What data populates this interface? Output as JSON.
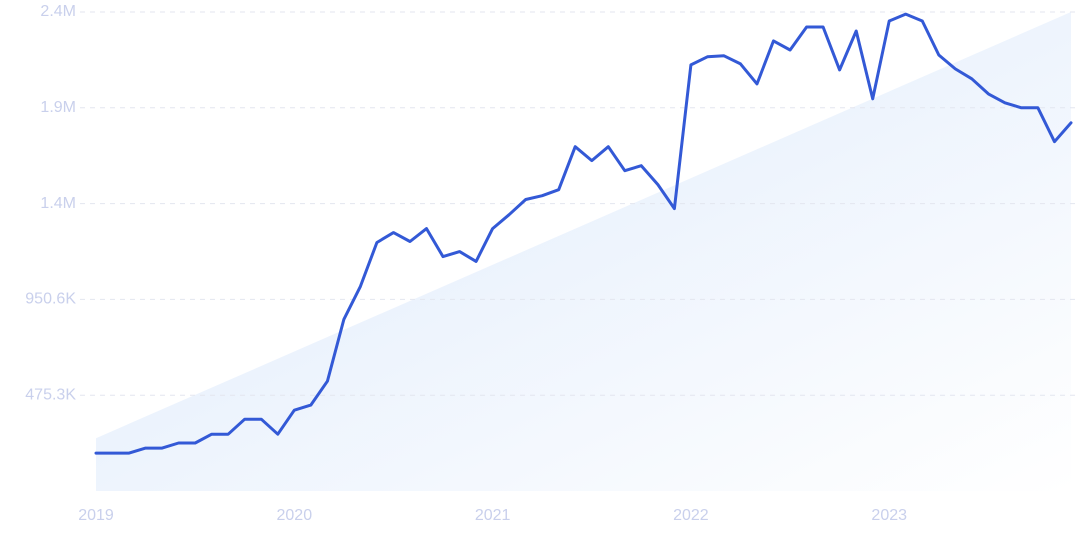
{
  "chart_data": {
    "type": "line",
    "categories": [
      "2019",
      null,
      null,
      null,
      null,
      null,
      null,
      null,
      null,
      null,
      null,
      null,
      "2020",
      null,
      null,
      null,
      null,
      null,
      null,
      null,
      null,
      null,
      null,
      null,
      "2021",
      null,
      null,
      null,
      null,
      null,
      null,
      null,
      null,
      null,
      null,
      null,
      "2022",
      null,
      null,
      null,
      null,
      null,
      null,
      null,
      null,
      null,
      null,
      null,
      "2023",
      null,
      null,
      null,
      null,
      null,
      null,
      null,
      null,
      null,
      null,
      null
    ],
    "series": [
      {
        "color": "#3359d6",
        "values": [
          188000,
          188000,
          188000,
          213000,
          213000,
          238000,
          238000,
          282000,
          282000,
          356000,
          356000,
          282000,
          401000,
          426000,
          545000,
          852000,
          1015000,
          1233000,
          1282000,
          1238000,
          1302000,
          1163000,
          1188000,
          1139000,
          1302000,
          1371000,
          1446000,
          1465000,
          1495000,
          1708000,
          1639000,
          1708000,
          1589000,
          1614000,
          1520000,
          1401000,
          2114000,
          2154000,
          2159000,
          2119000,
          2020000,
          2233000,
          2188000,
          2302000,
          2302000,
          2089000,
          2282000,
          1946000,
          2332000,
          2366000,
          2332000,
          2163000,
          2094000,
          2045000,
          1970000,
          1926000,
          1901000,
          1901000,
          1733000,
          1827000
        ]
      }
    ],
    "trend": {
      "color": "#e3eefc",
      "values": [
        262000,
        2376500
      ]
    },
    "ylim": [
      0,
      2376500
    ],
    "yticks": [
      {
        "value": 475300,
        "label": "475.3K"
      },
      {
        "value": 950600,
        "label": "950.6K"
      },
      {
        "value": 1425900,
        "label": "1.4M"
      },
      {
        "value": 1901200,
        "label": "1.9M"
      },
      {
        "value": 2376500,
        "label": "2.4M"
      }
    ],
    "grid": true
  }
}
